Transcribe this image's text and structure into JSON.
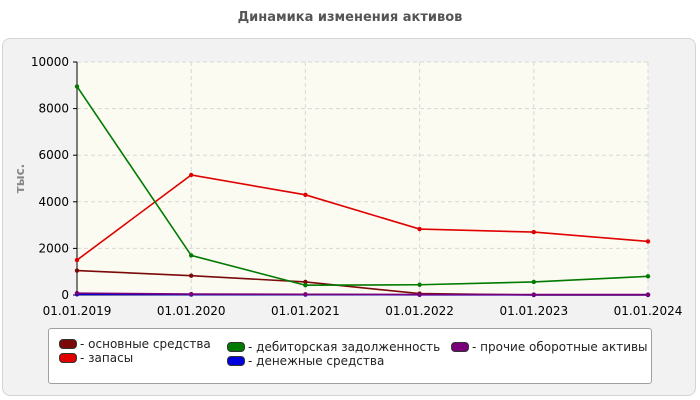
{
  "title": "Динамика изменения активов",
  "chart_data": {
    "type": "line",
    "title": "Динамика изменения активов",
    "ylabel": "тыс.",
    "xlabel": "",
    "categories": [
      "01.01.2019",
      "01.01.2020",
      "01.01.2021",
      "01.01.2022",
      "01.01.2023",
      "01.01.2024"
    ],
    "ylim": [
      0,
      10000
    ],
    "yticks": [
      "0",
      "2000",
      "4000",
      "6000",
      "8000",
      "10000"
    ],
    "grid": true,
    "legend_position": "bottom",
    "series": [
      {
        "name": "основные средства",
        "color": "#7a0a0a",
        "values": [
          1050,
          830,
          560,
          60,
          0,
          0
        ]
      },
      {
        "name": "запасы",
        "color": "#e00000",
        "values": [
          1500,
          5150,
          4300,
          2830,
          2700,
          2300
        ]
      },
      {
        "name": "дебиторская задолженность",
        "color": "#007a00",
        "values": [
          8950,
          1700,
          420,
          440,
          560,
          800
        ]
      },
      {
        "name": "денежные средства",
        "color": "#0000dd",
        "values": [
          30,
          20,
          20,
          10,
          10,
          10
        ]
      },
      {
        "name": "прочие оборотные активы",
        "color": "#7a007a",
        "values": [
          80,
          40,
          30,
          20,
          20,
          20
        ]
      }
    ]
  }
}
